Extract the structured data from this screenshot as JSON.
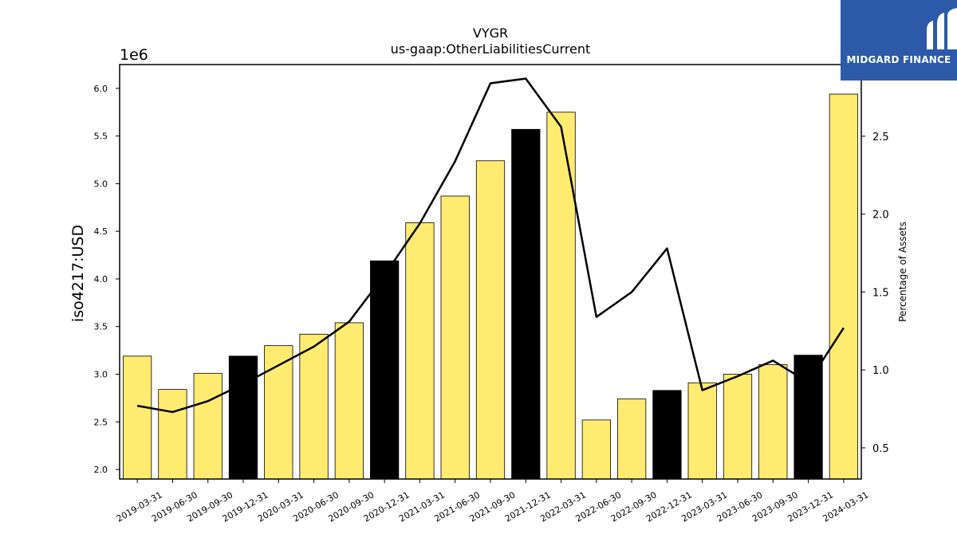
{
  "chart_data": {
    "type": "bar",
    "title": "VYGR",
    "subtitle": "us-gaap:OtherLiabilitiesCurrent",
    "ylabel": "iso4217:USD",
    "ylabel_right": "Percentage of Assets",
    "y_offset_label": "1e6",
    "categories": [
      "2019-03-31",
      "2019-06-30",
      "2019-09-30",
      "2019-12-31",
      "2020-03-31",
      "2020-06-30",
      "2020-09-30",
      "2020-12-31",
      "2021-03-31",
      "2021-06-30",
      "2021-09-30",
      "2021-12-31",
      "2022-03-31",
      "2022-06-30",
      "2022-09-30",
      "2022-12-31",
      "2023-03-31",
      "2023-06-30",
      "2023-09-30",
      "2023-12-31",
      "2024-03-31"
    ],
    "values": [
      3.19,
      2.84,
      3.01,
      3.19,
      3.3,
      3.42,
      3.54,
      4.19,
      4.59,
      4.87,
      5.24,
      5.57,
      5.75,
      2.52,
      2.74,
      2.83,
      2.91,
      3.0,
      3.1,
      3.2,
      5.94
    ],
    "bar_highlight": [
      false,
      false,
      false,
      true,
      false,
      false,
      false,
      true,
      false,
      false,
      false,
      true,
      false,
      false,
      false,
      true,
      false,
      false,
      false,
      true,
      false
    ],
    "line_series": {
      "values": [
        0.77,
        0.73,
        0.8,
        0.91,
        1.03,
        1.15,
        1.31,
        1.61,
        1.94,
        2.34,
        2.84,
        2.87,
        2.56,
        1.34,
        1.5,
        1.78,
        0.87,
        0.96,
        1.06,
        0.92,
        1.27
      ]
    },
    "ylim": [
      1.9,
      6.25
    ],
    "ylim_right": [
      0.3,
      2.96
    ],
    "yticks": [
      "2.0",
      "2.5",
      "3.0",
      "3.5",
      "4.0",
      "4.5",
      "5.0",
      "5.5",
      "6.0"
    ],
    "yticks_right": [
      "0.5",
      "1.0",
      "1.5",
      "2.0",
      "2.5"
    ],
    "colors": {
      "bar": "#ffeb70",
      "bar_highlight": "#000000",
      "line": "#000000",
      "logo_bg": "#2c5aa8"
    },
    "grid": false
  },
  "logo": {
    "text": "MIDGARD FINANCE",
    "icon": "midgard-logo-icon"
  }
}
